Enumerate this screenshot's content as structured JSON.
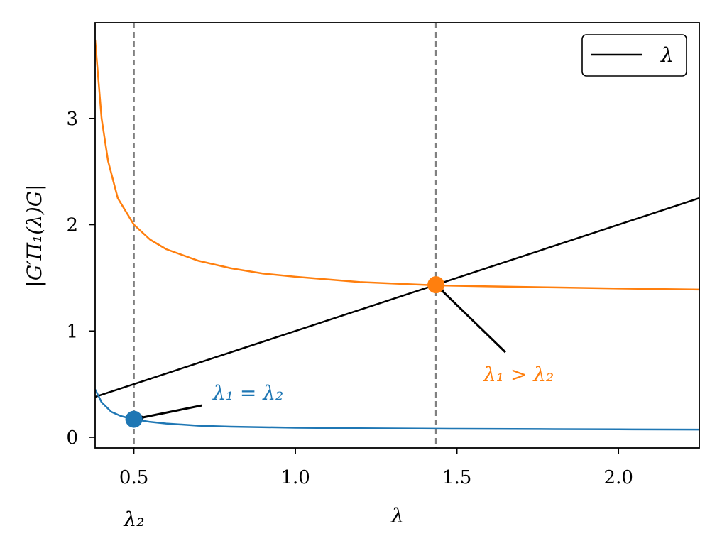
{
  "chart_data": {
    "type": "line",
    "xlabel": "λ",
    "ylabel": "|G′Π₁(λ)G|",
    "xlim": [
      0.38,
      2.25
    ],
    "ylim": [
      -0.1,
      3.9
    ],
    "xticks": [
      0.5,
      1.0,
      1.5,
      2.0
    ],
    "xtick_labels": [
      "0.5",
      "1.0",
      "1.5",
      "2.0"
    ],
    "yticks": [
      0,
      1,
      2,
      3
    ],
    "ytick_labels": [
      "0",
      "1",
      "2",
      "3"
    ],
    "grid": false,
    "legend": {
      "position": "top-right",
      "entries": [
        "λ"
      ]
    },
    "colors": {
      "identity": "#000000",
      "orange": "#ff7f0e",
      "blue": "#1f77b4",
      "vline": "#808080"
    },
    "series": [
      {
        "name": "λ",
        "kind": "identity",
        "x": [
          0.38,
          2.25
        ],
        "y": [
          0.38,
          2.25
        ]
      },
      {
        "kind": "curve",
        "x": [
          0.38,
          0.4,
          0.42,
          0.45,
          0.5,
          0.55,
          0.6,
          0.7,
          0.8,
          0.9,
          1.0,
          1.2,
          1.43,
          1.6,
          1.8,
          2.0,
          2.25
        ],
        "y": [
          3.74,
          3.0,
          2.6,
          2.25,
          2.0,
          1.86,
          1.77,
          1.66,
          1.59,
          1.54,
          1.51,
          1.46,
          1.43,
          1.42,
          1.41,
          1.4,
          1.39
        ]
      },
      {
        "kind": "curve",
        "x": [
          0.38,
          0.4,
          0.43,
          0.46,
          0.5,
          0.55,
          0.6,
          0.7,
          0.8,
          1.0,
          1.2,
          1.5,
          1.8,
          2.0,
          2.25
        ],
        "y": [
          0.45,
          0.33,
          0.24,
          0.2,
          0.17,
          0.145,
          0.13,
          0.11,
          0.1,
          0.09,
          0.085,
          0.08,
          0.077,
          0.075,
          0.073
        ]
      }
    ],
    "vlines": [
      0.5,
      1.435
    ],
    "points": [
      {
        "x": 0.5,
        "y": 0.17,
        "color": "#1f77b4"
      },
      {
        "x": 1.435,
        "y": 1.435,
        "color": "#ff7f0e"
      }
    ],
    "annotations": [
      {
        "text": "λ₁ = λ₂",
        "color": "#1f77b4",
        "x_data": 0.73,
        "y_data": 0.37,
        "arrow_from": [
          0.71,
          0.3
        ],
        "arrow_to": [
          0.5,
          0.17
        ]
      },
      {
        "text": "λ₁ > λ₂",
        "color": "#ff7f0e",
        "x_data": 1.58,
        "y_data": 0.55,
        "arrow_from": [
          1.65,
          0.8
        ],
        "arrow_to": [
          1.435,
          1.435
        ]
      }
    ],
    "extra_xlabel": "λ₂"
  }
}
